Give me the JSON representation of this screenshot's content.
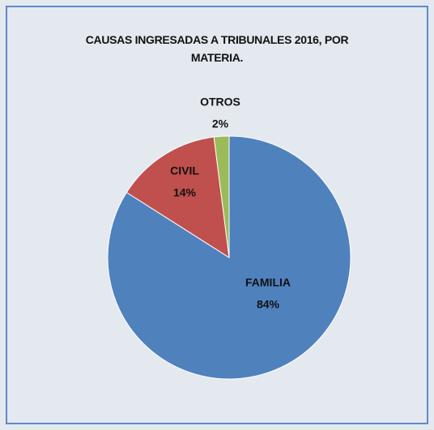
{
  "chart_data": {
    "type": "pie",
    "title": "CAUSAS INGRESADAS A TRIBUNALES 2016, POR MATERIA.",
    "categories": [
      "FAMILIA",
      "CIVIL",
      "OTROS"
    ],
    "values": [
      84,
      14,
      2
    ],
    "value_labels": [
      "84%",
      "14%",
      "2%"
    ],
    "colors": [
      "#4f81bd",
      "#c0504d",
      "#9bbb59"
    ]
  }
}
